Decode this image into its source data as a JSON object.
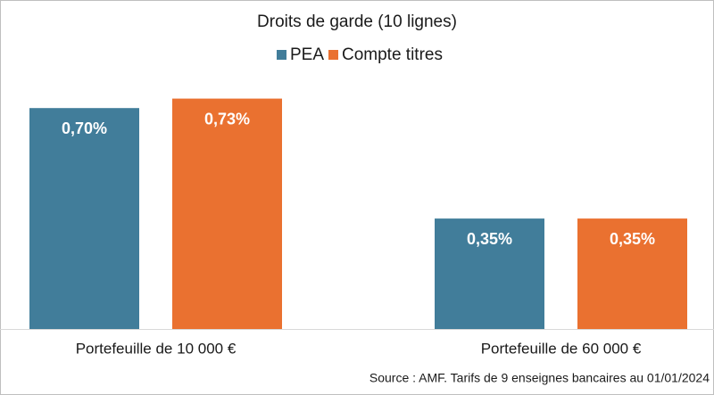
{
  "chart_data": {
    "type": "bar",
    "title": "Droits de garde (10 lignes)",
    "categories": [
      "Portefeuille de 10 000 €",
      "Portefeuille de 60 000 €"
    ],
    "series": [
      {
        "name": "PEA",
        "color": "#417d9a",
        "values": [
          0.7,
          0.35
        ],
        "value_labels": [
          "0,70%",
          "0,35%"
        ]
      },
      {
        "name": "Compte titres",
        "color": "#ea7130",
        "values": [
          0.73,
          0.35
        ],
        "value_labels": [
          "0,73%",
          "0,35%"
        ]
      }
    ],
    "source": "Source : AMF. Tarifs de 9 enseignes bancaires au 01/01/2024"
  }
}
